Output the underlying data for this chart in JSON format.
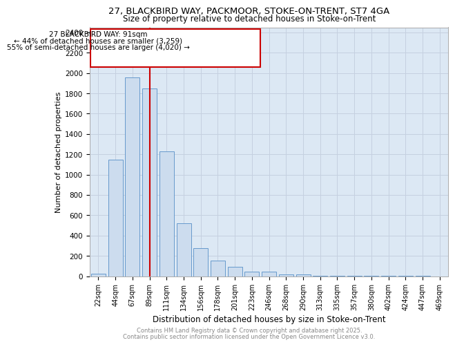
{
  "title1": "27, BLACKBIRD WAY, PACKMOOR, STOKE-ON-TRENT, ST7 4GA",
  "title2": "Size of property relative to detached houses in Stoke-on-Trent",
  "xlabel": "Distribution of detached houses by size in Stoke-on-Trent",
  "ylabel": "Number of detached properties",
  "bar_labels": [
    "22sqm",
    "44sqm",
    "67sqm",
    "89sqm",
    "111sqm",
    "134sqm",
    "156sqm",
    "178sqm",
    "201sqm",
    "223sqm",
    "246sqm",
    "268sqm",
    "290sqm",
    "313sqm",
    "335sqm",
    "357sqm",
    "380sqm",
    "402sqm",
    "424sqm",
    "447sqm",
    "469sqm"
  ],
  "bar_heights": [
    25,
    1150,
    1960,
    1850,
    1230,
    520,
    275,
    150,
    90,
    45,
    45,
    20,
    15,
    5,
    3,
    3,
    2,
    2,
    1,
    1,
    0
  ],
  "bar_color": "#ccdcee",
  "bar_edge_color": "#6699cc",
  "grid_color": "#c5d0e0",
  "background_color": "#dce8f4",
  "red_line_index": 3,
  "annotation_line1": "27 BLACKBIRD WAY: 91sqm",
  "annotation_line2": "← 44% of detached houses are smaller (3,259)",
  "annotation_line3": "55% of semi-detached houses are larger (4,020) →",
  "annotation_color": "#cc0000",
  "ylim": [
    0,
    2450
  ],
  "yticks": [
    0,
    200,
    400,
    600,
    800,
    1000,
    1200,
    1400,
    1600,
    1800,
    2000,
    2200,
    2400
  ],
  "footer1": "Contains HM Land Registry data © Crown copyright and database right 2025.",
  "footer2": "Contains public sector information licensed under the Open Government Licence v3.0."
}
